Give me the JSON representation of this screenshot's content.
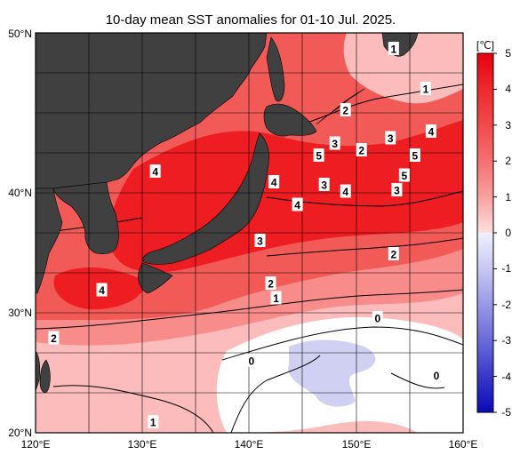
{
  "title": "10-day mean SST anomalies for 01-10 Jul. 2025.",
  "map": {
    "lon_range": [
      120,
      160
    ],
    "lat_range": [
      20,
      50
    ],
    "lon_ticks": [
      "120°E",
      "130°E",
      "140°E",
      "150°E",
      "160°E"
    ],
    "lat_ticks": [
      "50°N",
      "40°N",
      "30°N",
      "20°N"
    ],
    "contour_labels": [
      {
        "text": "1",
        "lon": 153.5,
        "lat": 48.8
      },
      {
        "text": "1",
        "lon": 156.5,
        "lat": 45.8
      },
      {
        "text": "2",
        "lon": 149.0,
        "lat": 44.2
      },
      {
        "text": "4",
        "lon": 157.0,
        "lat": 42.6
      },
      {
        "text": "3",
        "lon": 153.2,
        "lat": 42.1
      },
      {
        "text": "3",
        "lon": 148.0,
        "lat": 41.7
      },
      {
        "text": "2",
        "lon": 150.5,
        "lat": 41.2
      },
      {
        "text": "5",
        "lon": 146.5,
        "lat": 40.8
      },
      {
        "text": "5",
        "lon": 155.5,
        "lat": 40.8
      },
      {
        "text": "4",
        "lon": 131.2,
        "lat": 39.6
      },
      {
        "text": "5",
        "lon": 154.5,
        "lat": 39.3
      },
      {
        "text": "4",
        "lon": 142.3,
        "lat": 38.8
      },
      {
        "text": "3",
        "lon": 147.0,
        "lat": 38.6
      },
      {
        "text": "4",
        "lon": 149.0,
        "lat": 38.1
      },
      {
        "text": "3",
        "lon": 153.8,
        "lat": 38.2
      },
      {
        "text": "4",
        "lon": 144.5,
        "lat": 37.1
      },
      {
        "text": "3",
        "lon": 141.0,
        "lat": 34.4
      },
      {
        "text": "2",
        "lon": 153.5,
        "lat": 33.4
      },
      {
        "text": "2",
        "lon": 142.0,
        "lat": 31.2
      },
      {
        "text": "1",
        "lon": 142.5,
        "lat": 30.1
      },
      {
        "text": "4",
        "lon": 126.2,
        "lat": 30.7
      },
      {
        "text": "0",
        "lon": 152.0,
        "lat": 28.6
      },
      {
        "text": "2",
        "lon": 121.7,
        "lat": 27.1
      },
      {
        "text": "0",
        "lon": 140.2,
        "lat": 25.4
      },
      {
        "text": "0",
        "lon": 157.5,
        "lat": 24.3
      },
      {
        "text": "1",
        "lon": 131.0,
        "lat": 20.8
      }
    ]
  },
  "colorbar": {
    "unit": "[℃]",
    "ticks": [
      "5",
      "4",
      "3",
      "2",
      "1",
      "0",
      "-1",
      "-2",
      "-3",
      "-4",
      "-5"
    ],
    "colors": {
      "pos5": "#e8000f",
      "pos4": "#ee2a2e",
      "pos3": "#f24a4a",
      "pos2": "#f57070",
      "pos1": "#f9a0a0",
      "pos0": "#fde0e0",
      "neg0": "#f0f0ff",
      "neg1": "#c8c8f2",
      "neg2": "#9898e6",
      "neg3": "#6a6ad8",
      "neg4": "#3838ca",
      "neg5": "#0a0ab8"
    }
  },
  "colors": {
    "land": "#404040",
    "strong_warm": "#ee1d22",
    "warm": "#f25a58",
    "mild_warm": "#f88c8b",
    "weak_warm": "#fbbcbb",
    "neutral": "#ffffff",
    "cool": "#cfd0f2"
  }
}
